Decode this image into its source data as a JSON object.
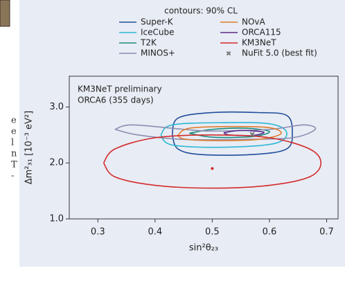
{
  "chart_data": {
    "type": "contour",
    "legend_title": "contours: 90% CL",
    "annotations": [
      "KM3NeT preliminary",
      "ORCA6 (355 days)"
    ],
    "x_label": "sin²θ₂₃",
    "y_label": "Δm²₃₁ [10⁻³ eV²]",
    "xlim": [
      0.25,
      0.72
    ],
    "xticks": [
      0.3,
      0.4,
      0.5,
      0.6,
      0.7
    ],
    "ylim": [
      1.0,
      3.55
    ],
    "yticks": [
      {
        "value": 1.0,
        "label": "1.0"
      },
      {
        "value": 2.0,
        "label": "2.0"
      },
      {
        "value": 3.0,
        "label": "3.0"
      }
    ],
    "series": [
      {
        "name": "Super-K",
        "color": "#1f4e9c",
        "x": [
          0.43,
          0.44,
          0.5,
          0.58,
          0.63,
          0.64,
          0.63,
          0.57,
          0.48,
          0.44,
          0.43
        ],
        "y": [
          2.5,
          2.8,
          2.9,
          2.9,
          2.85,
          2.55,
          2.25,
          2.15,
          2.15,
          2.25,
          2.5
        ]
      },
      {
        "name": "IceCube",
        "color": "#2ab7d6",
        "x": [
          0.41,
          0.43,
          0.52,
          0.6,
          0.63,
          0.61,
          0.52,
          0.43,
          0.41
        ],
        "y": [
          2.5,
          2.68,
          2.72,
          2.7,
          2.55,
          2.35,
          2.28,
          2.32,
          2.5
        ]
      },
      {
        "name": "T2K",
        "color": "#1a8a7a",
        "x": [
          0.46,
          0.5,
          0.56,
          0.6,
          0.57,
          0.5,
          0.46
        ],
        "y": [
          2.53,
          2.6,
          2.62,
          2.56,
          2.47,
          2.46,
          2.53
        ]
      },
      {
        "name": "MINOS+",
        "color": "#8c8cb0",
        "x": [
          0.33,
          0.36,
          0.45,
          0.5,
          0.6,
          0.66,
          0.68,
          0.64,
          0.55,
          0.45,
          0.37,
          0.33
        ],
        "y": [
          2.6,
          2.68,
          2.6,
          2.57,
          2.6,
          2.68,
          2.6,
          2.45,
          2.42,
          2.42,
          2.5,
          2.6
        ]
      },
      {
        "name": "NOvA",
        "color": "#e07b2a",
        "x": [
          0.44,
          0.46,
          0.53,
          0.6,
          0.62,
          0.58,
          0.5,
          0.45,
          0.44
        ],
        "y": [
          2.5,
          2.62,
          2.65,
          2.63,
          2.52,
          2.42,
          2.4,
          2.43,
          2.5
        ]
      },
      {
        "name": "ORCA115",
        "color": "#5a2a8a",
        "x": [
          0.52,
          0.55,
          0.59,
          0.57,
          0.53,
          0.52
        ],
        "y": [
          2.54,
          2.58,
          2.55,
          2.49,
          2.5,
          2.54
        ]
      },
      {
        "name": "KM3NeT",
        "color": "#d42a2a",
        "x": [
          0.31,
          0.33,
          0.4,
          0.5,
          0.6,
          0.67,
          0.69,
          0.67,
          0.6,
          0.5,
          0.4,
          0.33,
          0.31
        ],
        "y": [
          2.0,
          2.25,
          2.45,
          2.5,
          2.45,
          2.25,
          2.0,
          1.75,
          1.6,
          1.55,
          1.6,
          1.75,
          2.0
        ],
        "best_fit": [
          0.5,
          1.9
        ]
      },
      {
        "name": "NuFit 5.0 (best fit)",
        "color": "#777777",
        "marker": "x",
        "x": [
          0.57
        ],
        "y": [
          2.51
        ]
      }
    ]
  },
  "page_fragments": [
    "e",
    "e",
    "l",
    "n",
    "T",
    "-"
  ]
}
